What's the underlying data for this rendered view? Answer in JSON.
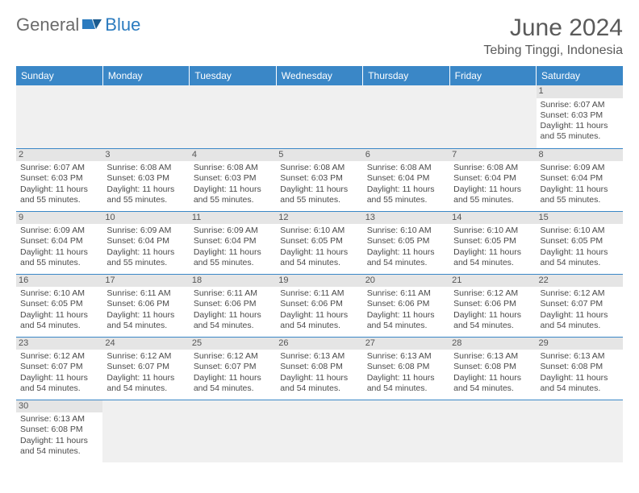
{
  "brand": {
    "general": "General",
    "blue": "Blue"
  },
  "header": {
    "title": "June 2024",
    "location": "Tebing Tinggi, Indonesia"
  },
  "colors": {
    "header_bg": "#3a87c7",
    "border": "#3a87c7",
    "daynum_bg": "#e5e5e5",
    "blank_bg": "#f0f0f0"
  },
  "weekdays": [
    "Sunday",
    "Monday",
    "Tuesday",
    "Wednesday",
    "Thursday",
    "Friday",
    "Saturday"
  ],
  "weeks": [
    [
      null,
      null,
      null,
      null,
      null,
      null,
      {
        "n": "1",
        "sr": "Sunrise: 6:07 AM",
        "ss": "Sunset: 6:03 PM",
        "dl": "Daylight: 11 hours and 55 minutes."
      }
    ],
    [
      {
        "n": "2",
        "sr": "Sunrise: 6:07 AM",
        "ss": "Sunset: 6:03 PM",
        "dl": "Daylight: 11 hours and 55 minutes."
      },
      {
        "n": "3",
        "sr": "Sunrise: 6:08 AM",
        "ss": "Sunset: 6:03 PM",
        "dl": "Daylight: 11 hours and 55 minutes."
      },
      {
        "n": "4",
        "sr": "Sunrise: 6:08 AM",
        "ss": "Sunset: 6:03 PM",
        "dl": "Daylight: 11 hours and 55 minutes."
      },
      {
        "n": "5",
        "sr": "Sunrise: 6:08 AM",
        "ss": "Sunset: 6:03 PM",
        "dl": "Daylight: 11 hours and 55 minutes."
      },
      {
        "n": "6",
        "sr": "Sunrise: 6:08 AM",
        "ss": "Sunset: 6:04 PM",
        "dl": "Daylight: 11 hours and 55 minutes."
      },
      {
        "n": "7",
        "sr": "Sunrise: 6:08 AM",
        "ss": "Sunset: 6:04 PM",
        "dl": "Daylight: 11 hours and 55 minutes."
      },
      {
        "n": "8",
        "sr": "Sunrise: 6:09 AM",
        "ss": "Sunset: 6:04 PM",
        "dl": "Daylight: 11 hours and 55 minutes."
      }
    ],
    [
      {
        "n": "9",
        "sr": "Sunrise: 6:09 AM",
        "ss": "Sunset: 6:04 PM",
        "dl": "Daylight: 11 hours and 55 minutes."
      },
      {
        "n": "10",
        "sr": "Sunrise: 6:09 AM",
        "ss": "Sunset: 6:04 PM",
        "dl": "Daylight: 11 hours and 55 minutes."
      },
      {
        "n": "11",
        "sr": "Sunrise: 6:09 AM",
        "ss": "Sunset: 6:04 PM",
        "dl": "Daylight: 11 hours and 55 minutes."
      },
      {
        "n": "12",
        "sr": "Sunrise: 6:10 AM",
        "ss": "Sunset: 6:05 PM",
        "dl": "Daylight: 11 hours and 54 minutes."
      },
      {
        "n": "13",
        "sr": "Sunrise: 6:10 AM",
        "ss": "Sunset: 6:05 PM",
        "dl": "Daylight: 11 hours and 54 minutes."
      },
      {
        "n": "14",
        "sr": "Sunrise: 6:10 AM",
        "ss": "Sunset: 6:05 PM",
        "dl": "Daylight: 11 hours and 54 minutes."
      },
      {
        "n": "15",
        "sr": "Sunrise: 6:10 AM",
        "ss": "Sunset: 6:05 PM",
        "dl": "Daylight: 11 hours and 54 minutes."
      }
    ],
    [
      {
        "n": "16",
        "sr": "Sunrise: 6:10 AM",
        "ss": "Sunset: 6:05 PM",
        "dl": "Daylight: 11 hours and 54 minutes."
      },
      {
        "n": "17",
        "sr": "Sunrise: 6:11 AM",
        "ss": "Sunset: 6:06 PM",
        "dl": "Daylight: 11 hours and 54 minutes."
      },
      {
        "n": "18",
        "sr": "Sunrise: 6:11 AM",
        "ss": "Sunset: 6:06 PM",
        "dl": "Daylight: 11 hours and 54 minutes."
      },
      {
        "n": "19",
        "sr": "Sunrise: 6:11 AM",
        "ss": "Sunset: 6:06 PM",
        "dl": "Daylight: 11 hours and 54 minutes."
      },
      {
        "n": "20",
        "sr": "Sunrise: 6:11 AM",
        "ss": "Sunset: 6:06 PM",
        "dl": "Daylight: 11 hours and 54 minutes."
      },
      {
        "n": "21",
        "sr": "Sunrise: 6:12 AM",
        "ss": "Sunset: 6:06 PM",
        "dl": "Daylight: 11 hours and 54 minutes."
      },
      {
        "n": "22",
        "sr": "Sunrise: 6:12 AM",
        "ss": "Sunset: 6:07 PM",
        "dl": "Daylight: 11 hours and 54 minutes."
      }
    ],
    [
      {
        "n": "23",
        "sr": "Sunrise: 6:12 AM",
        "ss": "Sunset: 6:07 PM",
        "dl": "Daylight: 11 hours and 54 minutes."
      },
      {
        "n": "24",
        "sr": "Sunrise: 6:12 AM",
        "ss": "Sunset: 6:07 PM",
        "dl": "Daylight: 11 hours and 54 minutes."
      },
      {
        "n": "25",
        "sr": "Sunrise: 6:12 AM",
        "ss": "Sunset: 6:07 PM",
        "dl": "Daylight: 11 hours and 54 minutes."
      },
      {
        "n": "26",
        "sr": "Sunrise: 6:13 AM",
        "ss": "Sunset: 6:08 PM",
        "dl": "Daylight: 11 hours and 54 minutes."
      },
      {
        "n": "27",
        "sr": "Sunrise: 6:13 AM",
        "ss": "Sunset: 6:08 PM",
        "dl": "Daylight: 11 hours and 54 minutes."
      },
      {
        "n": "28",
        "sr": "Sunrise: 6:13 AM",
        "ss": "Sunset: 6:08 PM",
        "dl": "Daylight: 11 hours and 54 minutes."
      },
      {
        "n": "29",
        "sr": "Sunrise: 6:13 AM",
        "ss": "Sunset: 6:08 PM",
        "dl": "Daylight: 11 hours and 54 minutes."
      }
    ],
    [
      {
        "n": "30",
        "sr": "Sunrise: 6:13 AM",
        "ss": "Sunset: 6:08 PM",
        "dl": "Daylight: 11 hours and 54 minutes."
      },
      null,
      null,
      null,
      null,
      null,
      null
    ]
  ]
}
